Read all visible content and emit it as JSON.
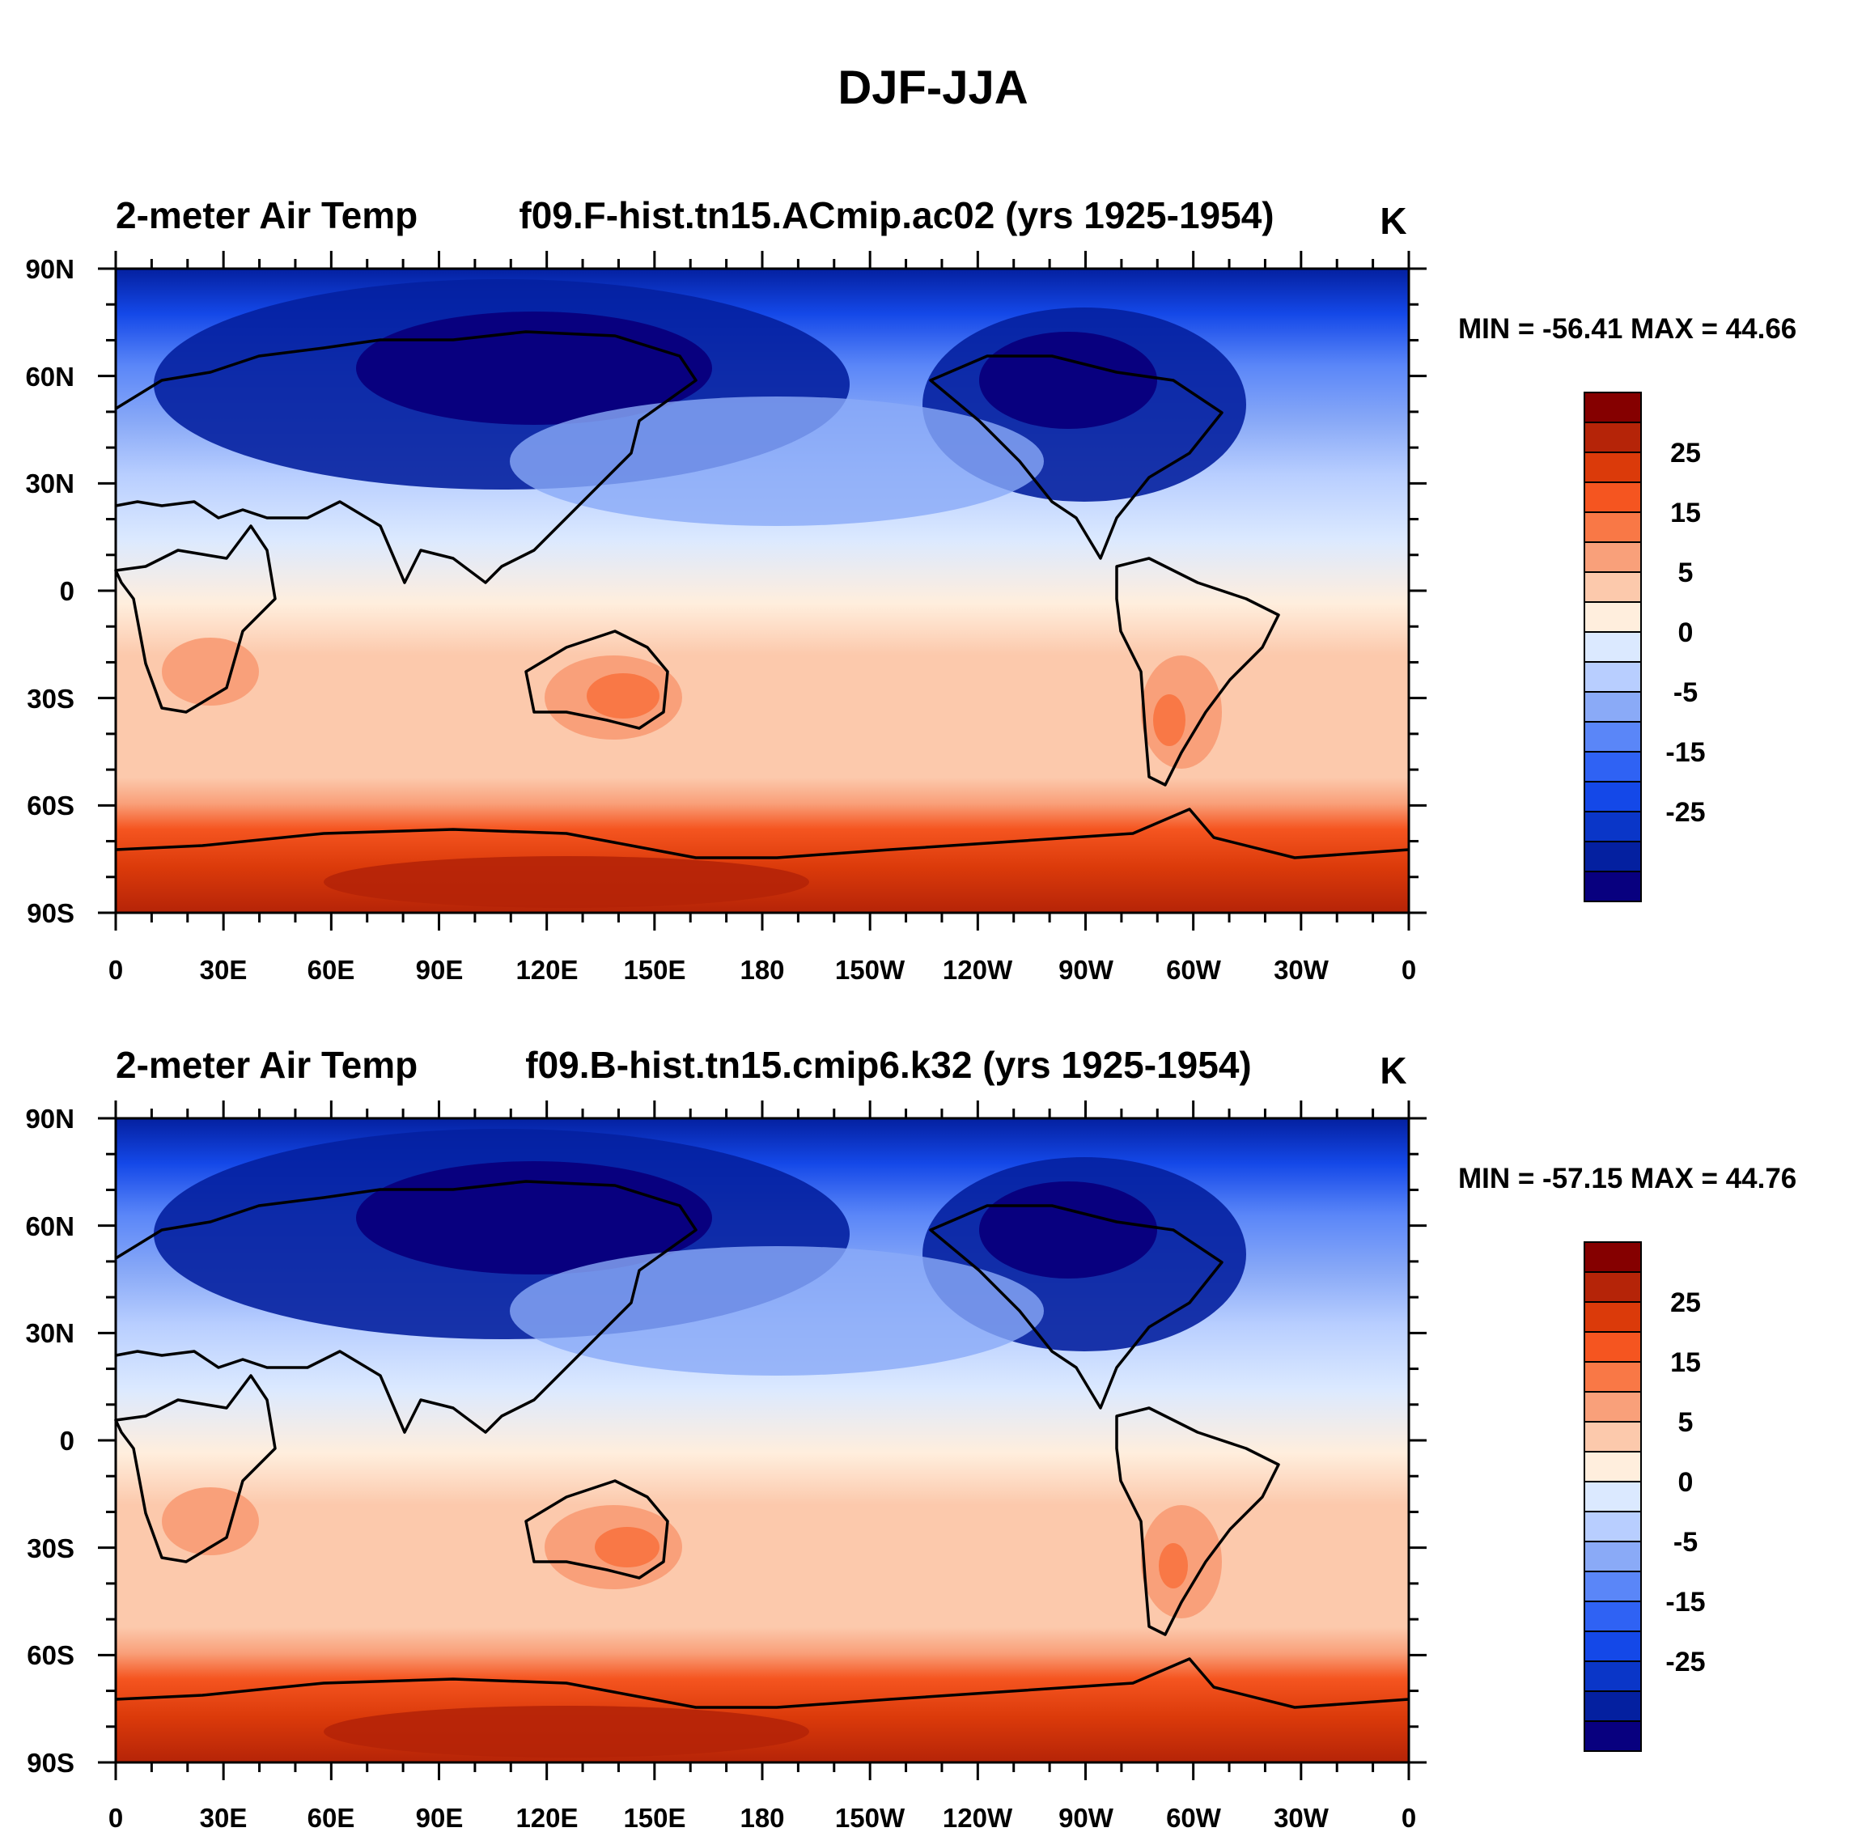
{
  "figure_title": "DJF-JJA",
  "x_tick_labels": [
    "0",
    "30E",
    "60E",
    "90E",
    "120E",
    "150E",
    "180",
    "150W",
    "120W",
    "90W",
    "60W",
    "30W",
    "0"
  ],
  "y_tick_labels": [
    "90N",
    "60N",
    "30N",
    "0",
    "30S",
    "60S",
    "90S"
  ],
  "colorbar": {
    "colors": [
      "#08007f",
      "#0420a0",
      "#0a36c8",
      "#1448e8",
      "#2f62f4",
      "#5a86f8",
      "#8aaaf7",
      "#b8ceff",
      "#dbe9ff",
      "#ffeedd",
      "#fcc9ac",
      "#f9a07a",
      "#f97846",
      "#f55520",
      "#db3a0a",
      "#b52408",
      "#850000"
    ],
    "labels": [
      "25",
      "15",
      "5",
      "0",
      "-5",
      "-15",
      "-25"
    ]
  },
  "panels": [
    {
      "left_title": "2-meter Air Temp",
      "center_title": "f09.F-hist.tn15.ACmip.ac02 (yrs 1925-1954)",
      "units": "K",
      "min_max": "MIN = -56.41 MAX =  44.66"
    },
    {
      "left_title": "2-meter Air Temp",
      "center_title": "f09.B-hist.tn15.cmip6.k32 (yrs 1925-1954)",
      "units": "K",
      "min_max": "MIN = -57.15 MAX =  44.76"
    }
  ]
}
